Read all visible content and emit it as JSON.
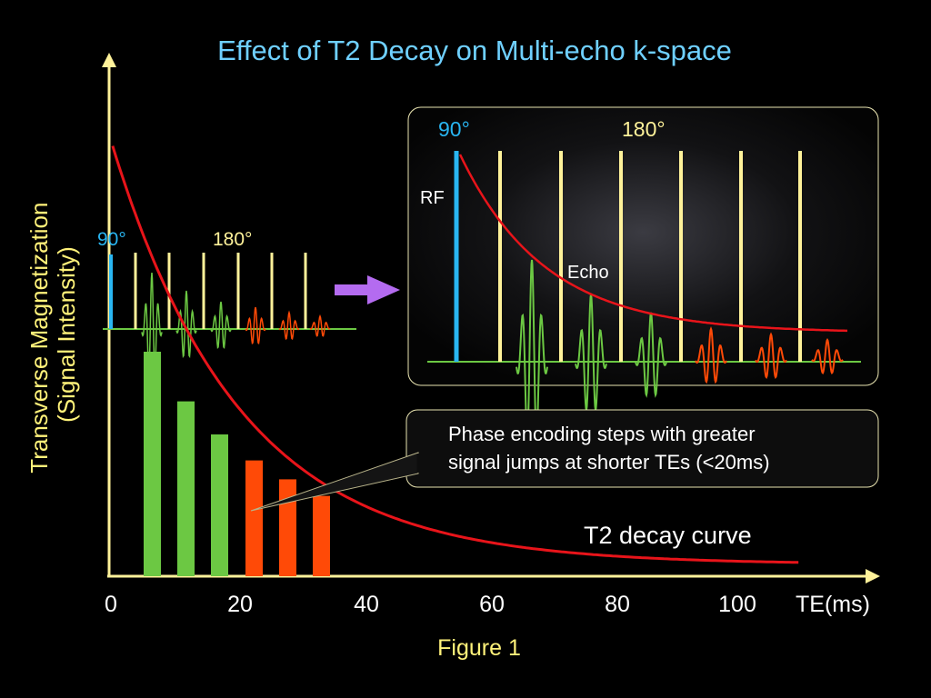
{
  "title": "Effect of T2 Decay on Multi-echo k-space",
  "yaxis_label_line1": "Transverse Magnetization",
  "yaxis_label_line2": "(Signal Intensity)",
  "xaxis_unit_label": "TE(ms)",
  "figure_caption": "Figure 1",
  "curve_label": "T2 decay curve",
  "callout_text_line1": "Phase encoding steps with greater",
  "callout_text_line2": "signal jumps at shorter TEs (<20ms)",
  "small_sequence": {
    "pulse90_label": "90°",
    "pulse180_label": "180°"
  },
  "inset": {
    "pulse90_label": "90°",
    "pulse180_label": "180°",
    "rf_label": "RF",
    "echo_label": "Echo"
  },
  "colors": {
    "title": "#6fd0ff",
    "axis_label": "#fff27a",
    "white_text": "#ffffff",
    "curve": "#e8141a",
    "bar_green": "#6cc843",
    "bar_orange": "#ff4a07",
    "pulse90": "#29b6f2",
    "pulse180": "#fff29a",
    "arrow": "#b46bf0"
  },
  "chart_data": {
    "type": "bar",
    "title": "Effect of T2 Decay on Multi-echo k-space",
    "xlabel": "TE(ms)",
    "ylabel": "Transverse Magnetization (Signal Intensity)",
    "x_ticks": [
      0,
      20,
      40,
      60,
      80,
      100
    ],
    "xlim": [
      0,
      120
    ],
    "ylim": [
      0,
      1
    ],
    "bars": [
      {
        "te": 6,
        "value": 0.95,
        "color": "green"
      },
      {
        "te": 12,
        "value": 0.74,
        "color": "green"
      },
      {
        "te": 17,
        "value": 0.6,
        "color": "green"
      },
      {
        "te": 23,
        "value": 0.49,
        "color": "orange"
      },
      {
        "te": 28,
        "value": 0.41,
        "color": "orange"
      },
      {
        "te": 34,
        "value": 0.34,
        "color": "orange"
      }
    ],
    "decay_curve": {
      "label": "T2 decay curve",
      "T2_ms": 20,
      "amplitude": 1.82,
      "baseline": 0.05,
      "te_range": [
        1,
        108
      ]
    }
  }
}
